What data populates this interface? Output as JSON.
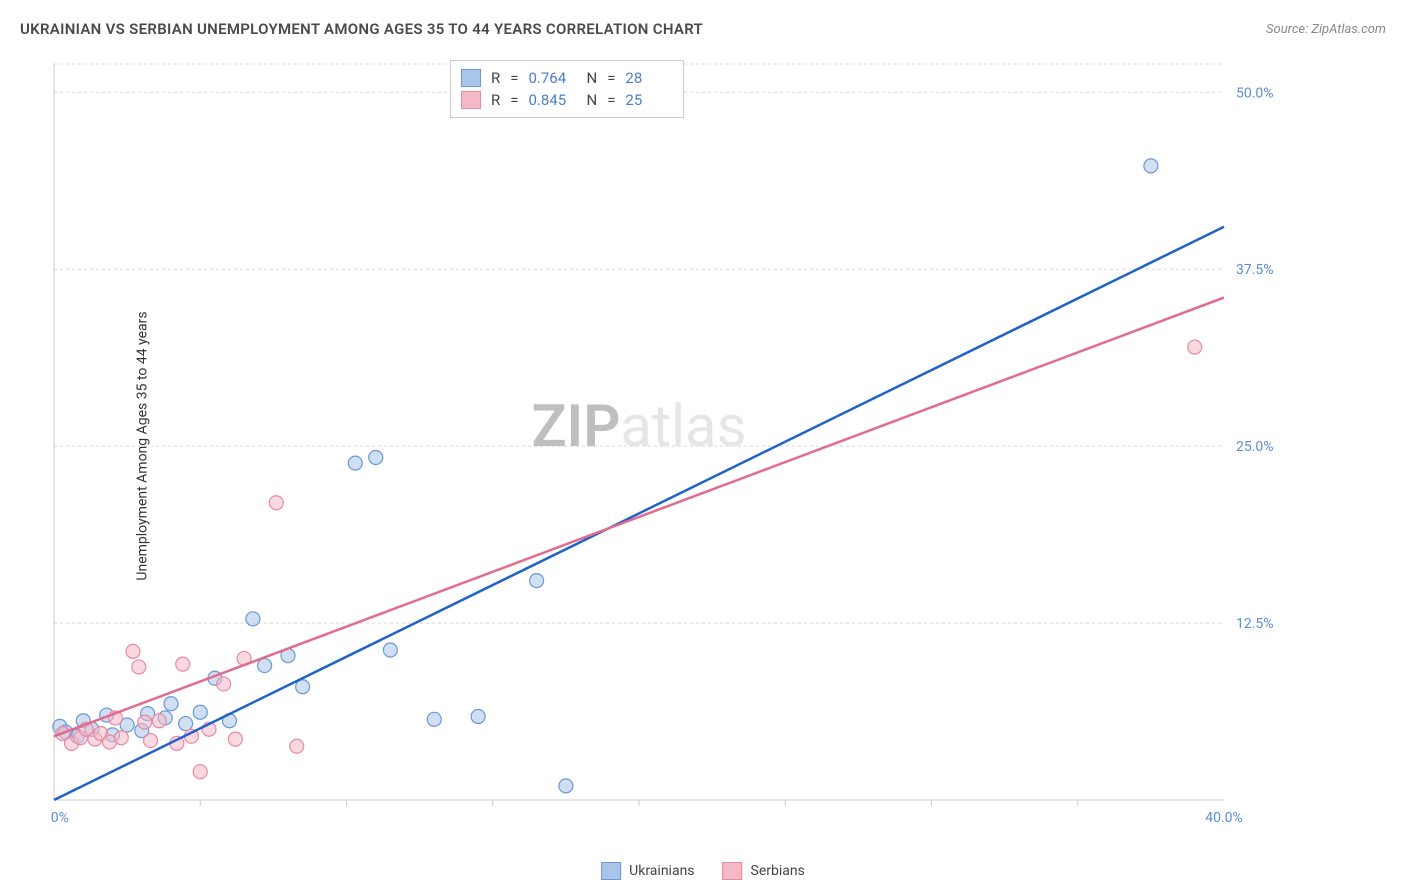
{
  "title": "UKRAINIAN VS SERBIAN UNEMPLOYMENT AMONG AGES 35 TO 44 YEARS CORRELATION CHART",
  "source_label": "Source: ZipAtlas.com",
  "ylabel": "Unemployment Among Ages 35 to 44 years",
  "watermark": {
    "part1": "ZIP",
    "part2": "atlas"
  },
  "chart": {
    "type": "scatter-with-regression",
    "background_color": "#ffffff",
    "grid_color": "#d8d8d8",
    "axis_color": "#cccccc",
    "tick_color": "#5b8dd6",
    "watermark_color_light": "#e6e6e6",
    "watermark_color_dark": "#bfbfbf",
    "xlim": [
      0,
      40
    ],
    "ylim": [
      0,
      52
    ],
    "xtick_labels": [
      {
        "pos": 0,
        "label": "0.0%"
      },
      {
        "pos": 40,
        "label": "40.0%"
      }
    ],
    "ytick_labels": [
      {
        "pos": 12.5,
        "label": "12.5%"
      },
      {
        "pos": 25.0,
        "label": "25.0%"
      },
      {
        "pos": 37.5,
        "label": "37.5%"
      },
      {
        "pos": 50.0,
        "label": "50.0%"
      }
    ],
    "xticks_minor": [
      5,
      10,
      15,
      20,
      25,
      30,
      35
    ],
    "y_gridlines": [
      12.5,
      25.0,
      37.5,
      50.0,
      52
    ],
    "series": [
      {
        "name": "Ukrainians",
        "fill": "#a9c5e8",
        "stroke": "#6b98d6",
        "line_color": "#1f63c9",
        "marker_radius": 7,
        "fill_opacity": 0.55,
        "stats": {
          "R": 0.764,
          "N": 28
        },
        "regression": {
          "x0": 0,
          "y0": 0.0,
          "x1": 40,
          "y1": 40.5
        },
        "points": [
          [
            0.2,
            5.2
          ],
          [
            0.4,
            4.8
          ],
          [
            0.8,
            4.5
          ],
          [
            1.0,
            5.6
          ],
          [
            1.3,
            5.0
          ],
          [
            1.8,
            6.0
          ],
          [
            2.0,
            4.6
          ],
          [
            2.5,
            5.3
          ],
          [
            3.0,
            4.9
          ],
          [
            3.2,
            6.1
          ],
          [
            3.8,
            5.8
          ],
          [
            4.0,
            6.8
          ],
          [
            4.5,
            5.4
          ],
          [
            5.0,
            6.2
          ],
          [
            5.5,
            8.6
          ],
          [
            6.0,
            5.6
          ],
          [
            6.8,
            12.8
          ],
          [
            7.2,
            9.5
          ],
          [
            8.0,
            10.2
          ],
          [
            8.5,
            8.0
          ],
          [
            10.3,
            23.8
          ],
          [
            11.0,
            24.2
          ],
          [
            11.5,
            10.6
          ],
          [
            13.0,
            5.7
          ],
          [
            14.5,
            5.9
          ],
          [
            16.5,
            15.5
          ],
          [
            17.5,
            1.0
          ],
          [
            37.5,
            44.8
          ]
        ]
      },
      {
        "name": "Serbians",
        "fill": "#f4b8c6",
        "stroke": "#e88aa3",
        "line_color": "#e36a8c",
        "marker_radius": 7,
        "fill_opacity": 0.55,
        "stats": {
          "R": 0.845,
          "N": 25
        },
        "regression": {
          "x0": 0,
          "y0": 4.5,
          "x1": 40,
          "y1": 35.5
        },
        "points": [
          [
            0.3,
            4.7
          ],
          [
            0.6,
            4.0
          ],
          [
            0.9,
            4.4
          ],
          [
            1.1,
            5.0
          ],
          [
            1.4,
            4.3
          ],
          [
            1.6,
            4.7
          ],
          [
            1.9,
            4.1
          ],
          [
            2.1,
            5.8
          ],
          [
            2.3,
            4.4
          ],
          [
            2.7,
            10.5
          ],
          [
            2.9,
            9.4
          ],
          [
            3.1,
            5.5
          ],
          [
            3.3,
            4.2
          ],
          [
            3.6,
            5.6
          ],
          [
            4.2,
            4.0
          ],
          [
            4.4,
            9.6
          ],
          [
            4.7,
            4.5
          ],
          [
            5.0,
            2.0
          ],
          [
            5.3,
            5.0
          ],
          [
            5.8,
            8.2
          ],
          [
            6.2,
            4.3
          ],
          [
            6.5,
            10.0
          ],
          [
            7.6,
            21.0
          ],
          [
            8.3,
            3.8
          ],
          [
            39.0,
            32.0
          ]
        ]
      }
    ]
  },
  "stats_legend": {
    "label_R": "R",
    "label_eq": "=",
    "label_N": "N"
  },
  "series_legend_blue": "Ukrainians",
  "series_legend_pink": "Serbians"
}
